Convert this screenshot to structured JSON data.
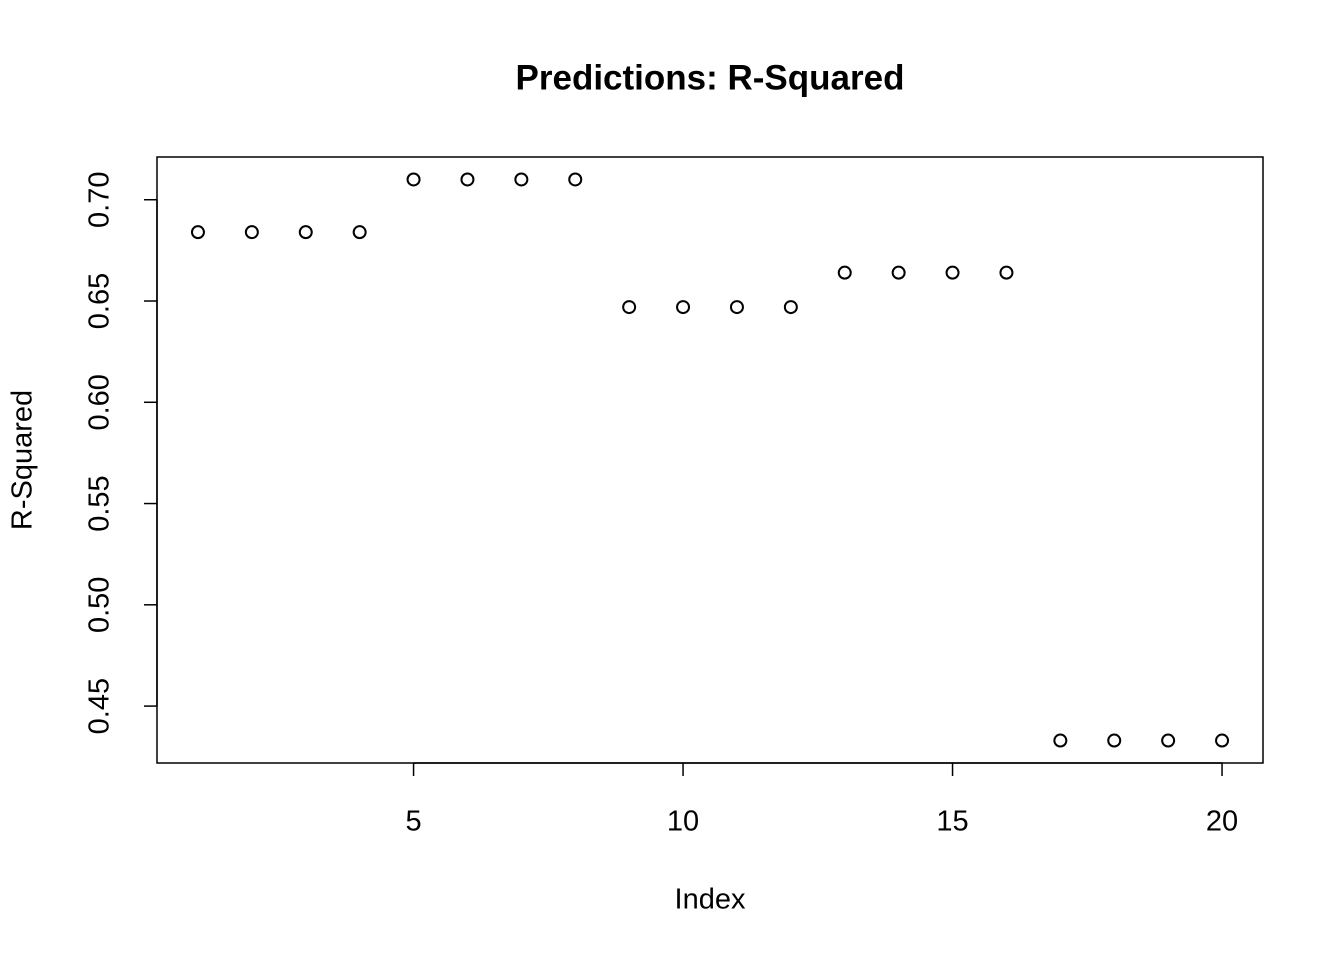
{
  "chart_data": {
    "type": "scatter",
    "title": "Predictions: R-Squared",
    "x_label": "Index",
    "y_label": "R-Squared",
    "x": [
      1,
      2,
      3,
      4,
      5,
      6,
      7,
      8,
      9,
      10,
      11,
      12,
      13,
      14,
      15,
      16,
      17,
      18,
      19,
      20
    ],
    "values": [
      0.684,
      0.684,
      0.684,
      0.684,
      0.71,
      0.71,
      0.71,
      0.71,
      0.647,
      0.647,
      0.647,
      0.647,
      0.664,
      0.664,
      0.664,
      0.664,
      0.433,
      0.433,
      0.433,
      0.433
    ],
    "color": "#000000",
    "xlim": [
      0.24,
      20.76
    ],
    "ylim": [
      0.4219,
      0.7211
    ],
    "xticks": [
      5,
      10,
      15,
      20
    ],
    "yticks": [
      0.45,
      {
        "value": 0.5,
        "label": "0.50"
      },
      0.55,
      {
        "value": 0.6,
        "label": "0.60"
      },
      0.65,
      {
        "value": 0.7,
        "label": "0.70"
      }
    ],
    "grid": false
  }
}
